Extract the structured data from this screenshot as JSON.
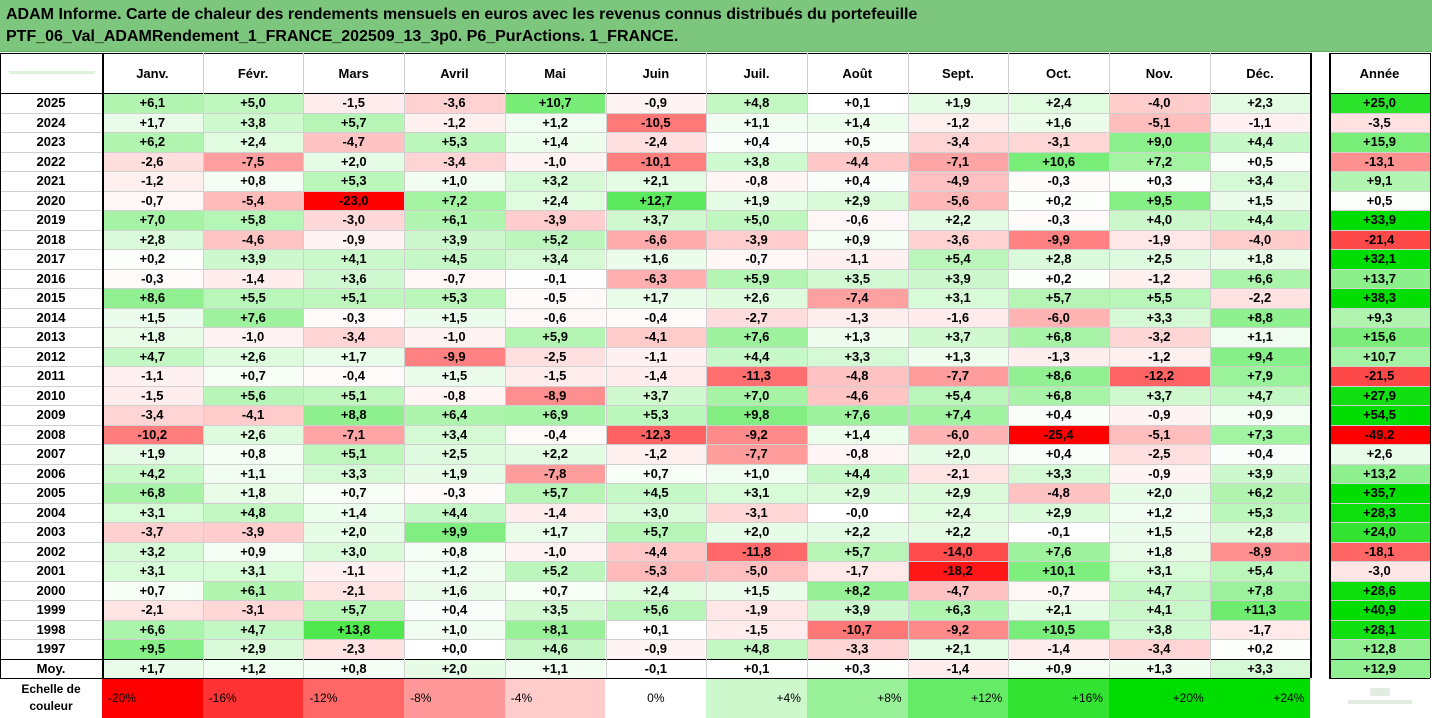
{
  "chart_data": {
    "type": "heatmap",
    "title_line_1": "ADAM Informe. Carte de chaleur des rendements mensuels en euros avec les revenus connus distribués du portefeuille",
    "title_line_2": "PTF_06_Val_ADAMRendement_1_FRANCE_202509_13_3p0. P6_PurActions. 1_FRANCE.",
    "columns": [
      "Janv.",
      "Févr.",
      "Mars",
      "Avril",
      "Mai",
      "Juin",
      "Juil.",
      "Août",
      "Sept.",
      "Oct.",
      "Nov.",
      "Déc."
    ],
    "year_column_label": "Année",
    "rows": [
      {
        "label": "2025",
        "values": [
          "+6,1",
          "+5,0",
          "-1,5",
          "-3,6",
          "+10,7",
          "-0,9",
          "+4,8",
          "+0,1",
          "+1,9",
          "+2,4",
          "-4,0",
          "+2,3"
        ],
        "year": "+25,0"
      },
      {
        "label": "2024",
        "values": [
          "+1,7",
          "+3,8",
          "+5,7",
          "-1,2",
          "+1,2",
          "-10,5",
          "+1,1",
          "+1,4",
          "-1,2",
          "+1,6",
          "-5,1",
          "-1,1"
        ],
        "year": "-3,5"
      },
      {
        "label": "2023",
        "values": [
          "+6,2",
          "+2,4",
          "-4,7",
          "+5,3",
          "+1,4",
          "-2,4",
          "+0,4",
          "+0,5",
          "-3,4",
          "-3,1",
          "+9,0",
          "+4,4"
        ],
        "year": "+15,9"
      },
      {
        "label": "2022",
        "values": [
          "-2,6",
          "-7,5",
          "+2,0",
          "-3,4",
          "-1,0",
          "-10,1",
          "+3,8",
          "-4,4",
          "-7,1",
          "+10,6",
          "+7,2",
          "+0,5"
        ],
        "year": "-13,1"
      },
      {
        "label": "2021",
        "values": [
          "-1,2",
          "+0,8",
          "+5,3",
          "+1,0",
          "+3,2",
          "+2,1",
          "-0,8",
          "+0,4",
          "-4,9",
          "-0,3",
          "+0,3",
          "+3,4"
        ],
        "year": "+9,1"
      },
      {
        "label": "2020",
        "values": [
          "-0,7",
          "-5,4",
          "-23,0",
          "+7,2",
          "+2,4",
          "+12,7",
          "+1,9",
          "+2,9",
          "-5,6",
          "+0,2",
          "+9,5",
          "+1,5"
        ],
        "year": "+0,5"
      },
      {
        "label": "2019",
        "values": [
          "+7,0",
          "+5,8",
          "-3,0",
          "+6,1",
          "-3,9",
          "+3,7",
          "+5,0",
          "-0,6",
          "+2,2",
          "-0,3",
          "+4,0",
          "+4,4"
        ],
        "year": "+33,9"
      },
      {
        "label": "2018",
        "values": [
          "+2,8",
          "-4,6",
          "-0,9",
          "+3,9",
          "+5,2",
          "-6,6",
          "-3,9",
          "+0,9",
          "-3,6",
          "-9,9",
          "-1,9",
          "-4,0"
        ],
        "year": "-21,4"
      },
      {
        "label": "2017",
        "values": [
          "+0,2",
          "+3,9",
          "+4,1",
          "+4,5",
          "+3,4",
          "+1,6",
          "-0,7",
          "-1,1",
          "+5,4",
          "+2,8",
          "+2,5",
          "+1,8"
        ],
        "year": "+32,1"
      },
      {
        "label": "2016",
        "values": [
          "-0,3",
          "-1,4",
          "+3,6",
          "-0,7",
          "-0,1",
          "-6,3",
          "+5,9",
          "+3,5",
          "+3,9",
          "+0,2",
          "-1,2",
          "+6,6"
        ],
        "year": "+13,7"
      },
      {
        "label": "2015",
        "values": [
          "+8,6",
          "+5,5",
          "+5,1",
          "+5,3",
          "-0,5",
          "+1,7",
          "+2,6",
          "-7,4",
          "+3,1",
          "+5,7",
          "+5,5",
          "-2,2"
        ],
        "year": "+38,3"
      },
      {
        "label": "2014",
        "values": [
          "+1,5",
          "+7,6",
          "-0,3",
          "+1,5",
          "-0,6",
          "-0,4",
          "-2,7",
          "-1,3",
          "-1,6",
          "-6,0",
          "+3,3",
          "+8,8"
        ],
        "year": "+9,3"
      },
      {
        "label": "2013",
        "values": [
          "+1,8",
          "-1,0",
          "-3,4",
          "-1,0",
          "+5,9",
          "-4,1",
          "+7,6",
          "+1,3",
          "+3,7",
          "+6,8",
          "-3,2",
          "+1,1"
        ],
        "year": "+15,6"
      },
      {
        "label": "2012",
        "values": [
          "+4,7",
          "+2,6",
          "+1,7",
          "-9,9",
          "-2,5",
          "-1,1",
          "+4,4",
          "+3,3",
          "+1,3",
          "-1,3",
          "-1,2",
          "+9,4"
        ],
        "year": "+10,7"
      },
      {
        "label": "2011",
        "values": [
          "-1,1",
          "+0,7",
          "-0,4",
          "+1,5",
          "-1,5",
          "-1,4",
          "-11,3",
          "-4,8",
          "-7,7",
          "+8,6",
          "-12,2",
          "+7,9"
        ],
        "year": "-21,5"
      },
      {
        "label": "2010",
        "values": [
          "-1,5",
          "+5,6",
          "+5,1",
          "-0,8",
          "-8,9",
          "+3,7",
          "+7,0",
          "-4,6",
          "+5,4",
          "+6,8",
          "+3,7",
          "+4,7"
        ],
        "year": "+27,9"
      },
      {
        "label": "2009",
        "values": [
          "-3,4",
          "-4,1",
          "+8,8",
          "+6,4",
          "+6,9",
          "+5,3",
          "+9,8",
          "+7,6",
          "+7,4",
          "+0,4",
          "-0,9",
          "+0,9"
        ],
        "year": "+54,5"
      },
      {
        "label": "2008",
        "values": [
          "-10,2",
          "+2,6",
          "-7,1",
          "+3,4",
          "-0,4",
          "-12,3",
          "-9,2",
          "+1,4",
          "-6,0",
          "-25,4",
          "-5,1",
          "+7,3"
        ],
        "year": "-49,2"
      },
      {
        "label": "2007",
        "values": [
          "+1,9",
          "+0,8",
          "+5,1",
          "+2,5",
          "+2,2",
          "-1,2",
          "-7,7",
          "-0,8",
          "+2,0",
          "+0,4",
          "-2,5",
          "+0,4"
        ],
        "year": "+2,6"
      },
      {
        "label": "2006",
        "values": [
          "+4,2",
          "+1,1",
          "+3,3",
          "+1,9",
          "-7,8",
          "+0,7",
          "+1,0",
          "+4,4",
          "-2,1",
          "+3,3",
          "-0,9",
          "+3,9"
        ],
        "year": "+13,2"
      },
      {
        "label": "2005",
        "values": [
          "+6,8",
          "+1,8",
          "+0,7",
          "-0,3",
          "+5,7",
          "+4,5",
          "+3,1",
          "+2,9",
          "+2,9",
          "-4,8",
          "+2,0",
          "+6,2"
        ],
        "year": "+35,7"
      },
      {
        "label": "2004",
        "values": [
          "+3,1",
          "+4,8",
          "+1,4",
          "+4,4",
          "-1,4",
          "+3,0",
          "-3,1",
          "-0,0",
          "+2,4",
          "+2,9",
          "+1,2",
          "+5,3"
        ],
        "year": "+28,3"
      },
      {
        "label": "2003",
        "values": [
          "-3,7",
          "-3,9",
          "+2,0",
          "+9,9",
          "+1,7",
          "+5,7",
          "+2,0",
          "+2,2",
          "+2,2",
          "-0,1",
          "+1,5",
          "+2,8"
        ],
        "year": "+24,0"
      },
      {
        "label": "2002",
        "values": [
          "+3,2",
          "+0,9",
          "+3,0",
          "+0,8",
          "-1,0",
          "-4,4",
          "-11,8",
          "+5,7",
          "-14,0",
          "+7,6",
          "+1,8",
          "-8,9"
        ],
        "year": "-18,1"
      },
      {
        "label": "2001",
        "values": [
          "+3,1",
          "+3,1",
          "-1,1",
          "+1,2",
          "+5,2",
          "-5,3",
          "-5,0",
          "-1,7",
          "-18,2",
          "+10,1",
          "+3,1",
          "+5,4"
        ],
        "year": "-3,0"
      },
      {
        "label": "2000",
        "values": [
          "+0,7",
          "+6,1",
          "-2,1",
          "+1,6",
          "+0,7",
          "+2,4",
          "+1,5",
          "+8,2",
          "-4,7",
          "-0,7",
          "+4,7",
          "+7,8"
        ],
        "year": "+28,6"
      },
      {
        "label": "1999",
        "values": [
          "-2,1",
          "-3,1",
          "+5,7",
          "+0,4",
          "+3,5",
          "+5,6",
          "-1,9",
          "+3,9",
          "+6,3",
          "+2,1",
          "+4,1",
          "+11,3"
        ],
        "year": "+40,9"
      },
      {
        "label": "1998",
        "values": [
          "+6,6",
          "+4,7",
          "+13,8",
          "+1,0",
          "+8,1",
          "+0,1",
          "-1,5",
          "-10,7",
          "-9,2",
          "+10,5",
          "+3,8",
          "-1,7"
        ],
        "year": "+28,1"
      },
      {
        "label": "1997",
        "values": [
          "+9,5",
          "+2,9",
          "-2,3",
          "+0,0",
          "+4,6",
          "-0,9",
          "+4,8",
          "-3,3",
          "+2,1",
          "-1,4",
          "-3,4",
          "+0,2"
        ],
        "year": "+12,8"
      }
    ],
    "avg_row": {
      "label": "Moy.",
      "values": [
        "+1,7",
        "+1,2",
        "+0,8",
        "+2,0",
        "+1,1",
        "-0,1",
        "+0,1",
        "+0,3",
        "-1,4",
        "+0,9",
        "+1,3",
        "+3,3"
      ],
      "year": "+12,9"
    },
    "scale": {
      "label": "Echelle de couleur",
      "labels": [
        "-20%",
        "-16%",
        "-12%",
        "-8%",
        "-4%",
        "0%",
        "+4%",
        "+8%",
        "+12%",
        "+16%",
        "+20%",
        "+24%"
      ],
      "values": [
        -20,
        -16,
        -12,
        -8,
        -4,
        0,
        4,
        8,
        12,
        16,
        20,
        24
      ]
    },
    "colors": {
      "negative_extreme": "#ff0000",
      "positive_extreme": "#00dd00",
      "neutral": "#ffffff",
      "title_band": "#7dc67d"
    }
  }
}
